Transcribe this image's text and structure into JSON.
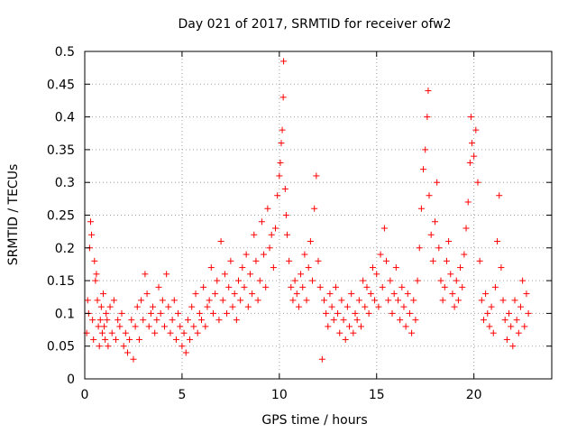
{
  "chart_data": {
    "type": "scatter",
    "title": "Day 021 of 2017, SRMTID for receiver ofw2",
    "xlabel": "GPS time / hours",
    "ylabel": "SRMTID / TECUs",
    "xlim": [
      0,
      24
    ],
    "ylim": [
      0,
      0.5
    ],
    "xticks": [
      0,
      5,
      10,
      15,
      20
    ],
    "xtick_labels": [
      "0",
      "5",
      "10",
      "15",
      "20"
    ],
    "yticks": [
      0,
      0.05,
      0.1,
      0.15,
      0.2,
      0.25,
      0.3,
      0.35,
      0.4,
      0.45,
      0.5
    ],
    "ytick_labels": [
      "0",
      "0.05",
      "0.1",
      "0.15",
      "0.2",
      "0.25",
      "0.3",
      "0.35",
      "0.4",
      "0.45",
      "0.5"
    ],
    "grid": true,
    "marker": "+",
    "color": "#ff0000",
    "series": [
      {
        "name": "SRMTID",
        "points": [
          [
            0.1,
            0.07
          ],
          [
            0.15,
            0.12
          ],
          [
            0.2,
            0.1
          ],
          [
            0.25,
            0.2
          ],
          [
            0.3,
            0.24
          ],
          [
            0.35,
            0.22
          ],
          [
            0.4,
            0.09
          ],
          [
            0.45,
            0.06
          ],
          [
            0.5,
            0.18
          ],
          [
            0.55,
            0.15
          ],
          [
            0.6,
            0.16
          ],
          [
            0.65,
            0.12
          ],
          [
            0.7,
            0.08
          ],
          [
            0.75,
            0.05
          ],
          [
            0.8,
            0.09
          ],
          [
            0.85,
            0.11
          ],
          [
            0.9,
            0.07
          ],
          [
            0.95,
            0.13
          ],
          [
            1.0,
            0.08
          ],
          [
            1.05,
            0.06
          ],
          [
            1.1,
            0.1
          ],
          [
            1.15,
            0.09
          ],
          [
            1.2,
            0.05
          ],
          [
            1.3,
            0.11
          ],
          [
            1.4,
            0.07
          ],
          [
            1.5,
            0.12
          ],
          [
            1.6,
            0.06
          ],
          [
            1.7,
            0.09
          ],
          [
            1.8,
            0.08
          ],
          [
            1.9,
            0.1
          ],
          [
            2.0,
            0.05
          ],
          [
            2.1,
            0.07
          ],
          [
            2.2,
            0.04
          ],
          [
            2.3,
            0.06
          ],
          [
            2.4,
            0.09
          ],
          [
            2.5,
            0.03
          ],
          [
            2.6,
            0.08
          ],
          [
            2.7,
            0.11
          ],
          [
            2.8,
            0.06
          ],
          [
            2.9,
            0.12
          ],
          [
            3.0,
            0.09
          ],
          [
            3.1,
            0.16
          ],
          [
            3.2,
            0.13
          ],
          [
            3.3,
            0.08
          ],
          [
            3.4,
            0.1
          ],
          [
            3.5,
            0.11
          ],
          [
            3.6,
            0.07
          ],
          [
            3.7,
            0.09
          ],
          [
            3.8,
            0.14
          ],
          [
            3.9,
            0.1
          ],
          [
            4.0,
            0.12
          ],
          [
            4.1,
            0.08
          ],
          [
            4.2,
            0.16
          ],
          [
            4.3,
            0.11
          ],
          [
            4.4,
            0.07
          ],
          [
            4.5,
            0.09
          ],
          [
            4.6,
            0.12
          ],
          [
            4.7,
            0.06
          ],
          [
            4.8,
            0.1
          ],
          [
            4.9,
            0.08
          ],
          [
            5.0,
            0.05
          ],
          [
            5.1,
            0.07
          ],
          [
            5.2,
            0.04
          ],
          [
            5.3,
            0.09
          ],
          [
            5.4,
            0.06
          ],
          [
            5.5,
            0.11
          ],
          [
            5.6,
            0.08
          ],
          [
            5.7,
            0.13
          ],
          [
            5.8,
            0.07
          ],
          [
            5.9,
            0.1
          ],
          [
            6.0,
            0.09
          ],
          [
            6.1,
            0.14
          ],
          [
            6.2,
            0.08
          ],
          [
            6.3,
            0.11
          ],
          [
            6.4,
            0.12
          ],
          [
            6.5,
            0.17
          ],
          [
            6.6,
            0.1
          ],
          [
            6.7,
            0.13
          ],
          [
            6.8,
            0.15
          ],
          [
            6.9,
            0.09
          ],
          [
            7.0,
            0.21
          ],
          [
            7.1,
            0.12
          ],
          [
            7.2,
            0.16
          ],
          [
            7.3,
            0.1
          ],
          [
            7.4,
            0.14
          ],
          [
            7.5,
            0.18
          ],
          [
            7.6,
            0.11
          ],
          [
            7.7,
            0.13
          ],
          [
            7.8,
            0.09
          ],
          [
            7.9,
            0.15
          ],
          [
            8.0,
            0.12
          ],
          [
            8.1,
            0.17
          ],
          [
            8.2,
            0.14
          ],
          [
            8.3,
            0.19
          ],
          [
            8.4,
            0.11
          ],
          [
            8.5,
            0.16
          ],
          [
            8.6,
            0.13
          ],
          [
            8.7,
            0.22
          ],
          [
            8.8,
            0.18
          ],
          [
            8.9,
            0.12
          ],
          [
            9.0,
            0.15
          ],
          [
            9.1,
            0.24
          ],
          [
            9.2,
            0.19
          ],
          [
            9.3,
            0.14
          ],
          [
            9.4,
            0.26
          ],
          [
            9.5,
            0.2
          ],
          [
            9.6,
            0.22
          ],
          [
            9.7,
            0.17
          ],
          [
            9.8,
            0.23
          ],
          [
            9.9,
            0.28
          ],
          [
            10.0,
            0.31
          ],
          [
            10.05,
            0.33
          ],
          [
            10.1,
            0.36
          ],
          [
            10.15,
            0.38
          ],
          [
            10.2,
            0.43
          ],
          [
            10.22,
            0.485
          ],
          [
            10.3,
            0.29
          ],
          [
            10.35,
            0.25
          ],
          [
            10.4,
            0.22
          ],
          [
            10.5,
            0.18
          ],
          [
            10.6,
            0.14
          ],
          [
            10.7,
            0.12
          ],
          [
            10.8,
            0.15
          ],
          [
            10.9,
            0.13
          ],
          [
            11.0,
            0.11
          ],
          [
            11.1,
            0.16
          ],
          [
            11.2,
            0.14
          ],
          [
            11.3,
            0.19
          ],
          [
            11.4,
            0.12
          ],
          [
            11.5,
            0.17
          ],
          [
            11.6,
            0.21
          ],
          [
            11.7,
            0.15
          ],
          [
            11.8,
            0.26
          ],
          [
            11.9,
            0.31
          ],
          [
            12.0,
            0.18
          ],
          [
            12.1,
            0.14
          ],
          [
            12.2,
            0.03
          ],
          [
            12.3,
            0.12
          ],
          [
            12.4,
            0.1
          ],
          [
            12.5,
            0.08
          ],
          [
            12.6,
            0.13
          ],
          [
            12.7,
            0.11
          ],
          [
            12.8,
            0.09
          ],
          [
            12.9,
            0.14
          ],
          [
            13.0,
            0.1
          ],
          [
            13.1,
            0.07
          ],
          [
            13.2,
            0.12
          ],
          [
            13.3,
            0.09
          ],
          [
            13.4,
            0.06
          ],
          [
            13.5,
            0.11
          ],
          [
            13.6,
            0.08
          ],
          [
            13.7,
            0.13
          ],
          [
            13.8,
            0.07
          ],
          [
            13.9,
            0.1
          ],
          [
            14.0,
            0.09
          ],
          [
            14.1,
            0.12
          ],
          [
            14.2,
            0.08
          ],
          [
            14.3,
            0.15
          ],
          [
            14.4,
            0.11
          ],
          [
            14.5,
            0.14
          ],
          [
            14.6,
            0.1
          ],
          [
            14.7,
            0.13
          ],
          [
            14.8,
            0.17
          ],
          [
            14.9,
            0.12
          ],
          [
            15.0,
            0.16
          ],
          [
            15.1,
            0.11
          ],
          [
            15.2,
            0.19
          ],
          [
            15.3,
            0.14
          ],
          [
            15.4,
            0.23
          ],
          [
            15.5,
            0.18
          ],
          [
            15.6,
            0.12
          ],
          [
            15.7,
            0.15
          ],
          [
            15.8,
            0.1
          ],
          [
            15.9,
            0.13
          ],
          [
            16.0,
            0.17
          ],
          [
            16.1,
            0.12
          ],
          [
            16.2,
            0.09
          ],
          [
            16.3,
            0.14
          ],
          [
            16.4,
            0.11
          ],
          [
            16.5,
            0.08
          ],
          [
            16.6,
            0.13
          ],
          [
            16.7,
            0.1
          ],
          [
            16.8,
            0.07
          ],
          [
            16.9,
            0.12
          ],
          [
            17.0,
            0.09
          ],
          [
            17.1,
            0.15
          ],
          [
            17.2,
            0.2
          ],
          [
            17.3,
            0.26
          ],
          [
            17.4,
            0.32
          ],
          [
            17.5,
            0.35
          ],
          [
            17.6,
            0.4
          ],
          [
            17.65,
            0.44
          ],
          [
            17.7,
            0.28
          ],
          [
            17.8,
            0.22
          ],
          [
            17.9,
            0.18
          ],
          [
            18.0,
            0.24
          ],
          [
            18.1,
            0.3
          ],
          [
            18.2,
            0.2
          ],
          [
            18.3,
            0.15
          ],
          [
            18.4,
            0.12
          ],
          [
            18.5,
            0.14
          ],
          [
            18.6,
            0.18
          ],
          [
            18.7,
            0.21
          ],
          [
            18.8,
            0.16
          ],
          [
            18.9,
            0.13
          ],
          [
            19.0,
            0.11
          ],
          [
            19.1,
            0.15
          ],
          [
            19.2,
            0.12
          ],
          [
            19.3,
            0.17
          ],
          [
            19.4,
            0.14
          ],
          [
            19.5,
            0.19
          ],
          [
            19.6,
            0.23
          ],
          [
            19.7,
            0.27
          ],
          [
            19.8,
            0.33
          ],
          [
            19.85,
            0.4
          ],
          [
            19.9,
            0.36
          ],
          [
            20.0,
            0.34
          ],
          [
            20.1,
            0.38
          ],
          [
            20.2,
            0.3
          ],
          [
            20.3,
            0.18
          ],
          [
            20.4,
            0.12
          ],
          [
            20.5,
            0.09
          ],
          [
            20.6,
            0.13
          ],
          [
            20.7,
            0.1
          ],
          [
            20.8,
            0.08
          ],
          [
            20.9,
            0.11
          ],
          [
            21.0,
            0.07
          ],
          [
            21.1,
            0.14
          ],
          [
            21.2,
            0.21
          ],
          [
            21.3,
            0.28
          ],
          [
            21.4,
            0.17
          ],
          [
            21.5,
            0.12
          ],
          [
            21.6,
            0.09
          ],
          [
            21.7,
            0.06
          ],
          [
            21.8,
            0.1
          ],
          [
            21.9,
            0.08
          ],
          [
            22.0,
            0.05
          ],
          [
            22.1,
            0.12
          ],
          [
            22.2,
            0.09
          ],
          [
            22.3,
            0.07
          ],
          [
            22.4,
            0.11
          ],
          [
            22.5,
            0.15
          ],
          [
            22.6,
            0.08
          ],
          [
            22.7,
            0.13
          ],
          [
            22.8,
            0.1
          ]
        ]
      }
    ]
  }
}
